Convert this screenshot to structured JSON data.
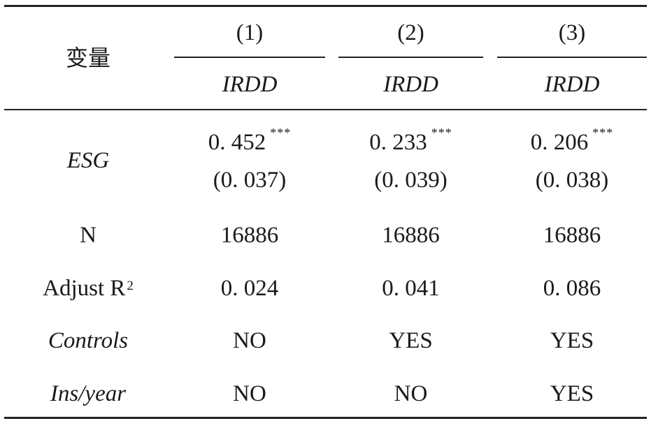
{
  "header": {
    "variable_label": "变量",
    "columns": [
      {
        "number": "(1)",
        "dependent": "IRDD"
      },
      {
        "number": "(2)",
        "dependent": "IRDD"
      },
      {
        "number": "(3)",
        "dependent": "IRDD"
      }
    ]
  },
  "rows": {
    "esg": {
      "label": "ESG",
      "coefs": [
        "0. 452",
        "0. 233",
        "0. 206"
      ],
      "stars": [
        "***",
        "***",
        "***"
      ],
      "ses": [
        "(0. 037)",
        "(0. 039)",
        "(0. 038)"
      ]
    },
    "n": {
      "label": "N",
      "values": [
        "16886",
        "16886",
        "16886"
      ]
    },
    "r2": {
      "label": "Adjust R",
      "sup": "2",
      "values": [
        "0. 024",
        "0. 041",
        "0. 086"
      ]
    },
    "controls": {
      "label": "Controls",
      "values": [
        "NO",
        "YES",
        "YES"
      ]
    },
    "ins_year": {
      "label": "Ins/year",
      "values": [
        "NO",
        "NO",
        "YES"
      ]
    }
  }
}
